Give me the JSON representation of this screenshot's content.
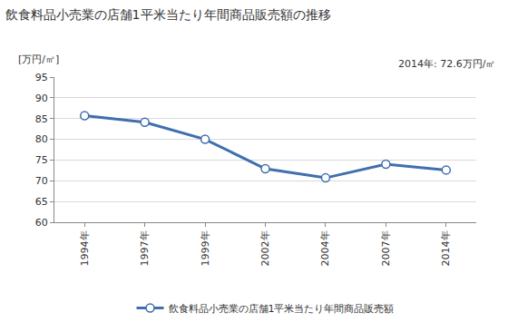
{
  "chart_data": {
    "type": "line",
    "title": "飲食料品小売業の店舗1平米当たり年間商品販売額の推移",
    "y_label": "[万円/㎡]",
    "annotation": "2014年: 72.6万円/㎡",
    "categories": [
      "1994年",
      "1997年",
      "1999年",
      "2002年",
      "2004年",
      "2007年",
      "2014年"
    ],
    "series": [
      {
        "name": "飲食料品小売業の店舗1平米当たり年間商品販売額",
        "color": "#3f6fae",
        "values": [
          85.7,
          84.1,
          80.0,
          72.9,
          70.7,
          74.0,
          72.6
        ]
      }
    ],
    "ylim": [
      60,
      95
    ],
    "yticks": [
      60,
      65,
      70,
      75,
      80,
      85,
      90,
      95
    ],
    "grid": true,
    "legend": "bottom",
    "marker": "circle",
    "line_style": "solid"
  }
}
